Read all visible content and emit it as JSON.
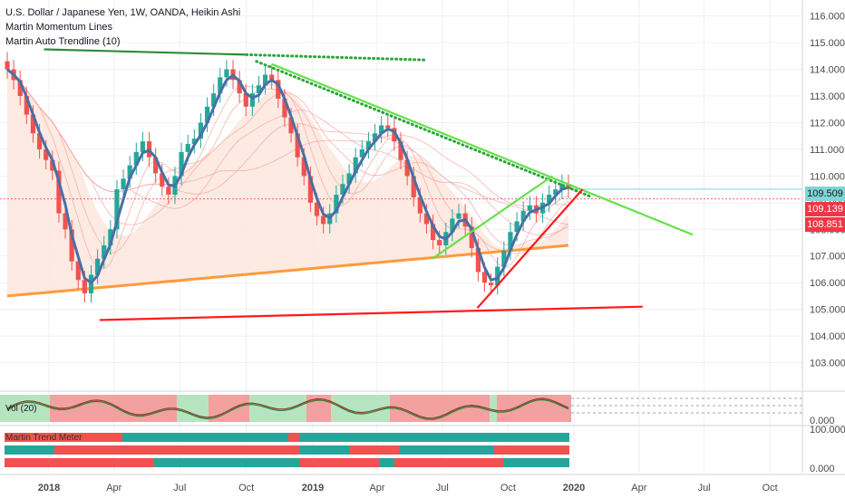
{
  "header": {
    "title": "U.S. Dollar / Japanese Yen, 1W, OANDA, Heikin Ashi",
    "indicator_1": "Martin Momentum Lines",
    "indicator_2": "Martin Auto Trendline (10)"
  },
  "price_tags": [
    {
      "value": "109.509",
      "bg": "#7fd6d3",
      "fg": "#131722"
    },
    {
      "value": "109.139",
      "bg": "#f23645",
      "fg": "#ffffff"
    },
    {
      "value": "108.851",
      "bg": "#f23645",
      "fg": "#ffffff"
    }
  ],
  "osc_pane": {
    "label": "Vol (20)",
    "tick": "0.000"
  },
  "trend_pane": {
    "label": "Martin Trend Meter",
    "ticks": [
      "100.000",
      "0.000"
    ]
  },
  "colors": {
    "bull": "#26a69a",
    "bear": "#ef5350",
    "ema_fast": "#4a6fa5",
    "ema_slow": "#ff9a3c",
    "trend_green": "#66e04a",
    "trend_red": "#ff1a1a",
    "dotted_green": "#2aa53a"
  },
  "chart_data": {
    "type": "candlestick",
    "symbol": "USDJPY",
    "timeframe": "1W",
    "y_ticks": [
      "116.000",
      "115.000",
      "114.000",
      "113.000",
      "112.000",
      "111.000",
      "110.000",
      "109.000",
      "108.000",
      "107.000",
      "106.000",
      "105.000",
      "104.000",
      "103.000"
    ],
    "x_ticks": [
      "2018",
      "Apr",
      "Jul",
      "Oct",
      "2019",
      "Apr",
      "Jul",
      "Oct",
      "2020",
      "Apr",
      "Jul",
      "Oct"
    ],
    "ylim": [
      102.0,
      116.6
    ],
    "candles_close": [
      114.0,
      113.6,
      113.0,
      112.3,
      111.6,
      111.0,
      110.6,
      110.2,
      108.6,
      108.0,
      106.8,
      106.1,
      105.6,
      106.3,
      106.9,
      107.4,
      108.0,
      109.5,
      109.9,
      110.4,
      110.9,
      111.3,
      110.7,
      110.1,
      109.6,
      109.3,
      110.0,
      110.9,
      111.2,
      111.4,
      112.0,
      112.6,
      113.1,
      113.7,
      114.0,
      113.6,
      113.1,
      112.6,
      113.1,
      113.4,
      113.8,
      113.6,
      112.9,
      112.2,
      111.6,
      110.7,
      110.0,
      109.0,
      108.5,
      108.2,
      108.6,
      109.3,
      109.7,
      110.1,
      110.7,
      111.0,
      111.3,
      111.6,
      111.9,
      111.8,
      111.3,
      110.6,
      110.0,
      109.2,
      108.6,
      108.2,
      107.6,
      107.4,
      107.9,
      108.4,
      108.6,
      108.1,
      107.3,
      106.4,
      106.0,
      105.9,
      106.6,
      107.2,
      107.9,
      108.3,
      108.7,
      108.9,
      108.6,
      109.0,
      109.3,
      109.5,
      109.7,
      109.509
    ],
    "series": [
      {
        "name": "Martin Momentum Lines",
        "color": "#4a6fa5"
      },
      {
        "name": "Martin Auto Trendline (10)",
        "color": "#ff1a1a"
      }
    ],
    "trendlines": [
      {
        "color": "#2e8b3a",
        "points": [
          [
            "2017-12-25",
            114.75
          ],
          [
            "2018-10-01",
            114.55
          ]
        ]
      },
      {
        "color": "#2aa53a",
        "dotted": true,
        "points": [
          [
            "2018-10-01",
            114.55
          ],
          [
            "2019-06-10",
            114.35
          ]
        ]
      },
      {
        "color": "#66e04a",
        "points": [
          [
            "2018-11-05",
            114.2
          ],
          [
            "2020-06-15",
            107.8
          ]
        ]
      },
      {
        "color": "#2aa53a",
        "dotted": true,
        "points": [
          [
            "2018-10-15",
            114.3
          ],
          [
            "2020-01-27",
            109.2
          ]
        ]
      },
      {
        "color": "#66e04a",
        "points": [
          [
            "2019-06-17",
            106.9
          ],
          [
            "2019-12-02",
            110.0
          ]
        ]
      },
      {
        "color": "#ff1a1a",
        "points": [
          [
            "2018-03-12",
            104.6
          ],
          [
            "2020-04-06",
            105.1
          ]
        ]
      },
      {
        "color": "#ff1a1a",
        "points": [
          [
            "2019-08-19",
            105.05
          ],
          [
            "2020-01-13",
            109.5
          ]
        ]
      }
    ]
  }
}
